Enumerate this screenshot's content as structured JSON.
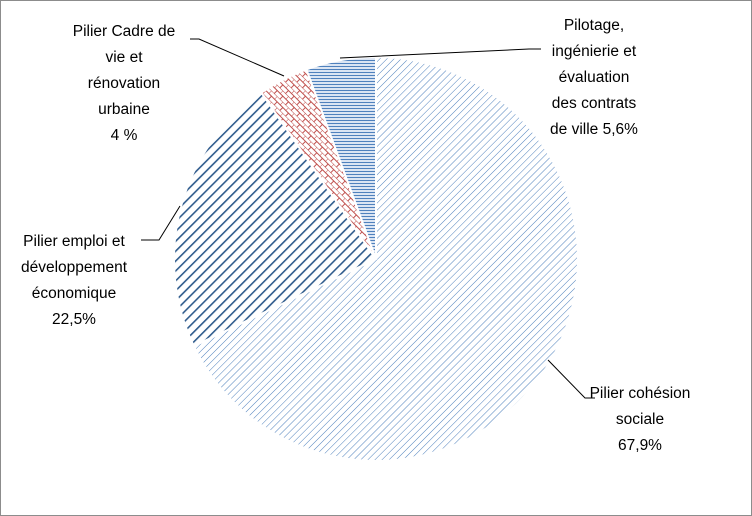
{
  "chart_data": {
    "type": "pie",
    "slices": [
      {
        "label_lines": [
          "Pilier cohésion",
          "sociale",
          "67,9%"
        ],
        "value": 67.9,
        "pattern": "diag-fine",
        "color": "#4f81bd"
      },
      {
        "label_lines": [
          "Pilier emploi et",
          "développement",
          "économique",
          "22,5%"
        ],
        "value": 22.5,
        "pattern": "diag-wide",
        "color": "#2f5b8c"
      },
      {
        "label_lines": [
          "Pilier Cadre de",
          "vie et",
          "rénovation",
          "urbaine",
          "4 %"
        ],
        "value": 4,
        "pattern": "brick",
        "color": "#c0504d"
      },
      {
        "label_lines": [
          "Pilotage,",
          "ingénierie et",
          "évaluation",
          "des contrats",
          "de ville 5,6%"
        ],
        "value": 5.6,
        "pattern": "horizontal",
        "color": "#4f81bd"
      }
    ],
    "start_angle_deg": 0,
    "direction": "clockwise",
    "legend": "none",
    "label_style": "outside with leader lines"
  }
}
